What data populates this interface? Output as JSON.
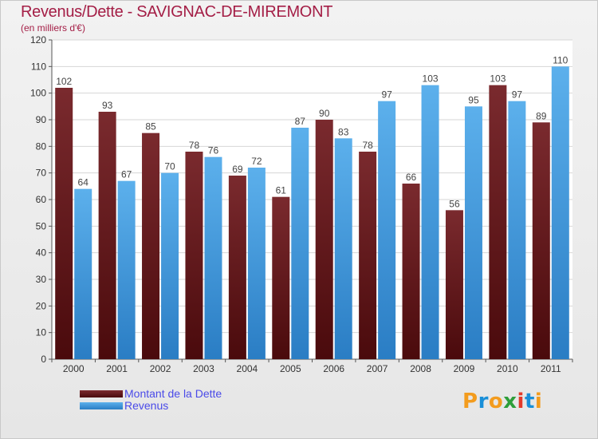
{
  "title": "Revenus/Dette - SAVIGNAC-DE-MIREMONT",
  "subtitle": "(en milliers d'€)",
  "colors": {
    "dette_top": "#7a2a2e",
    "dette_bottom": "#4a0a0c",
    "revenus_top": "#5cb0ec",
    "revenus_bottom": "#2a7dc4",
    "accent": "#a41e46"
  },
  "legend": {
    "dette": "Montant de la Dette",
    "revenus": "Revenus"
  },
  "logo": {
    "letters": [
      "P",
      "r",
      "o",
      "x",
      "i",
      "t",
      "i"
    ],
    "colors": [
      "#f39c1e",
      "#1a8fd8",
      "#f39c1e",
      "#2e9e3a",
      "#e23a2a",
      "#1a8fd8",
      "#f39c1e"
    ]
  },
  "chart_data": {
    "type": "bar",
    "categories": [
      "2000",
      "2001",
      "2002",
      "2003",
      "2004",
      "2005",
      "2006",
      "2007",
      "2008",
      "2009",
      "2010",
      "2011"
    ],
    "series": [
      {
        "name": "Montant de la Dette",
        "values": [
          102,
          93,
          85,
          78,
          69,
          61,
          90,
          78,
          66,
          56,
          103,
          89
        ]
      },
      {
        "name": "Revenus",
        "values": [
          64,
          67,
          70,
          76,
          72,
          87,
          83,
          97,
          103,
          95,
          97,
          110
        ]
      }
    ],
    "ylim": [
      0,
      120
    ],
    "yticks": [
      0,
      10,
      20,
      30,
      40,
      50,
      60,
      70,
      80,
      90,
      100,
      110,
      120
    ],
    "grid": true,
    "legend_position": "bottom-left"
  }
}
